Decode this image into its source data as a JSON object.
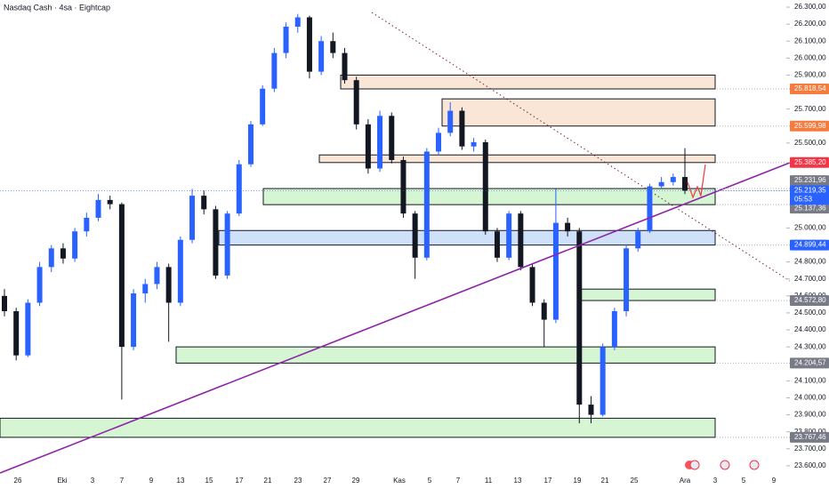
{
  "chart_data": {
    "type": "candlestick",
    "title": "Nasdaq Cash · 4sa · Eightcap",
    "categories": [
      "26",
      "Eki",
      "3",
      "7",
      "9",
      "13",
      "15",
      "17",
      "21",
      "23",
      "27",
      "29",
      "Kas",
      "5",
      "7",
      "11",
      "13",
      "17",
      "19",
      "21",
      "25",
      "Ara",
      "3",
      "5",
      "9"
    ],
    "ylim": [
      23568,
      26342
    ],
    "yticks": [
      {
        "value": 26300,
        "label": "26.300,00"
      },
      {
        "value": 26200,
        "label": "26.200,00"
      },
      {
        "value": 26100,
        "label": "26.100,00"
      },
      {
        "value": 26000,
        "label": "26.000,00"
      },
      {
        "value": 25900,
        "label": "25.900,00"
      },
      {
        "value": 25700,
        "label": "25.700,00"
      },
      {
        "value": 25500,
        "label": "25.500,00"
      },
      {
        "value": 25000,
        "label": "25.000,00"
      },
      {
        "value": 24800,
        "label": "24.800,00"
      },
      {
        "value": 24700,
        "label": "24.700,00"
      },
      {
        "value": 24600,
        "label": "24.600,00"
      },
      {
        "value": 24500,
        "label": "24.500,00"
      },
      {
        "value": 24400,
        "label": "24.400,00"
      },
      {
        "value": 24300,
        "label": "24.300,00"
      },
      {
        "value": 24100,
        "label": "24.100,00"
      },
      {
        "value": 24000,
        "label": "24.000,00"
      },
      {
        "value": 23900,
        "label": "23.900,00"
      },
      {
        "value": 23800,
        "label": "23.800,00"
      },
      {
        "value": 23700,
        "label": "23.700,00"
      },
      {
        "value": 23600,
        "label": "23.600,00"
      }
    ],
    "up_color": "#2962ff",
    "down_color": "#131722",
    "candles": [
      [
        24600,
        24640,
        24480,
        24510
      ],
      [
        24510,
        24530,
        24220,
        24250
      ],
      [
        24250,
        24580,
        24240,
        24560
      ],
      [
        24560,
        24800,
        24540,
        24770
      ],
      [
        24770,
        24900,
        24740,
        24880
      ],
      [
        24880,
        24910,
        24790,
        24820
      ],
      [
        24820,
        25000,
        24800,
        24980
      ],
      [
        24980,
        25090,
        24950,
        25060
      ],
      [
        25060,
        25200,
        25040,
        25165
      ],
      [
        25165,
        25190,
        25110,
        25140
      ],
      [
        25140,
        25150,
        23990,
        24300
      ],
      [
        24300,
        24640,
        24280,
        24615
      ],
      [
        24615,
        24700,
        24560,
        24670
      ],
      [
        24670,
        24800,
        24640,
        24770
      ],
      [
        24770,
        24790,
        24330,
        24560
      ],
      [
        24560,
        24950,
        24540,
        24930
      ],
      [
        24930,
        25230,
        24910,
        25190
      ],
      [
        25190,
        25220,
        25080,
        25110
      ],
      [
        25110,
        25130,
        24700,
        24720
      ],
      [
        24720,
        25100,
        24700,
        25085
      ],
      [
        25085,
        25400,
        25070,
        25375
      ],
      [
        25375,
        25630,
        25360,
        25610
      ],
      [
        25610,
        25840,
        25600,
        25820
      ],
      [
        25820,
        26060,
        25800,
        26030
      ],
      [
        26030,
        26210,
        26000,
        26185
      ],
      [
        26185,
        26260,
        26150,
        26240
      ],
      [
        26240,
        26250,
        25880,
        25920
      ],
      [
        25920,
        26130,
        25900,
        26100
      ],
      [
        26100,
        26150,
        26000,
        26030
      ],
      [
        26030,
        26060,
        25850,
        25870
      ],
      [
        25870,
        25890,
        25580,
        25610
      ],
      [
        25610,
        25640,
        25320,
        25350
      ],
      [
        25350,
        25690,
        25330,
        25660
      ],
      [
        25660,
        25680,
        25380,
        25400
      ],
      [
        25400,
        25420,
        25060,
        25085
      ],
      [
        25085,
        25100,
        24700,
        24825
      ],
      [
        24825,
        25470,
        24810,
        25450
      ],
      [
        25450,
        25590,
        25430,
        25560
      ],
      [
        25560,
        25740,
        25540,
        25690
      ],
      [
        25690,
        25710,
        25460,
        25480
      ],
      [
        25480,
        25530,
        25450,
        25505
      ],
      [
        25505,
        25520,
        24960,
        24980
      ],
      [
        24980,
        25000,
        24800,
        24825
      ],
      [
        24825,
        25100,
        24810,
        25085
      ],
      [
        25085,
        25100,
        24750,
        24770
      ],
      [
        24770,
        24790,
        24540,
        24560
      ],
      [
        24560,
        24580,
        24300,
        24460
      ],
      [
        24460,
        25230,
        24440,
        25030
      ],
      [
        25030,
        25060,
        24950,
        24980
      ],
      [
        24980,
        25000,
        23850,
        23960
      ],
      [
        23960,
        24010,
        23850,
        23900
      ],
      [
        23900,
        24320,
        23890,
        24300
      ],
      [
        24300,
        24530,
        24280,
        24510
      ],
      [
        24510,
        24900,
        24480,
        24880
      ],
      [
        24880,
        25000,
        24860,
        24980
      ],
      [
        24980,
        25260,
        24970,
        25245
      ],
      [
        25245,
        25300,
        25230,
        25270
      ],
      [
        25270,
        25320,
        25250,
        25300
      ],
      [
        25300,
        25470,
        25200,
        25219.35
      ]
    ],
    "zones": [
      {
        "top": 25900,
        "bottom": 25818.54,
        "color": "#f9e6d7"
      },
      {
        "top": 25760,
        "bottom": 25599.98,
        "color": "#f9e6d7"
      },
      {
        "top": 25430,
        "bottom": 25385.2,
        "color": "#f9e6d7"
      },
      {
        "top": 25231.96,
        "bottom": 25137.36,
        "color": "#d6f5d3"
      },
      {
        "top": 24985,
        "bottom": 24899.44,
        "color": "#cfe1f9"
      },
      {
        "top": 24640,
        "bottom": 24572.8,
        "color": "#d6f5d3"
      },
      {
        "top": 24300,
        "bottom": 24204.57,
        "color": "#d6f5d3"
      },
      {
        "top": 23880,
        "bottom": 23767.46,
        "color": "#d6f5d3"
      }
    ],
    "price_labels": [
      {
        "value": 25818.54,
        "label": "25.818,54",
        "color": "#f57c3f"
      },
      {
        "value": 25599.98,
        "label": "25.599,98",
        "color": "#f57c3f"
      },
      {
        "value": 25385.2,
        "label": "25.385,20",
        "color": "#f23645"
      },
      {
        "value": 25231.96,
        "label": "25.231,96",
        "color": "#787b86"
      },
      {
        "value": 25137.36,
        "label": "25.137,36",
        "color": "#787b86"
      },
      {
        "value": 24899.44,
        "label": "24.899,44",
        "color": "#2962ff"
      },
      {
        "value": 24572.8,
        "label": "24.572,80",
        "color": "#787b86"
      },
      {
        "value": 24204.57,
        "label": "24.204,57",
        "color": "#787b86"
      },
      {
        "value": 23767.46,
        "label": "23.767,46",
        "color": "#787b86"
      },
      {
        "value": 25219.35,
        "label": "25.219,35",
        "color": "#2962ff"
      }
    ],
    "countdown": "05:53"
  }
}
